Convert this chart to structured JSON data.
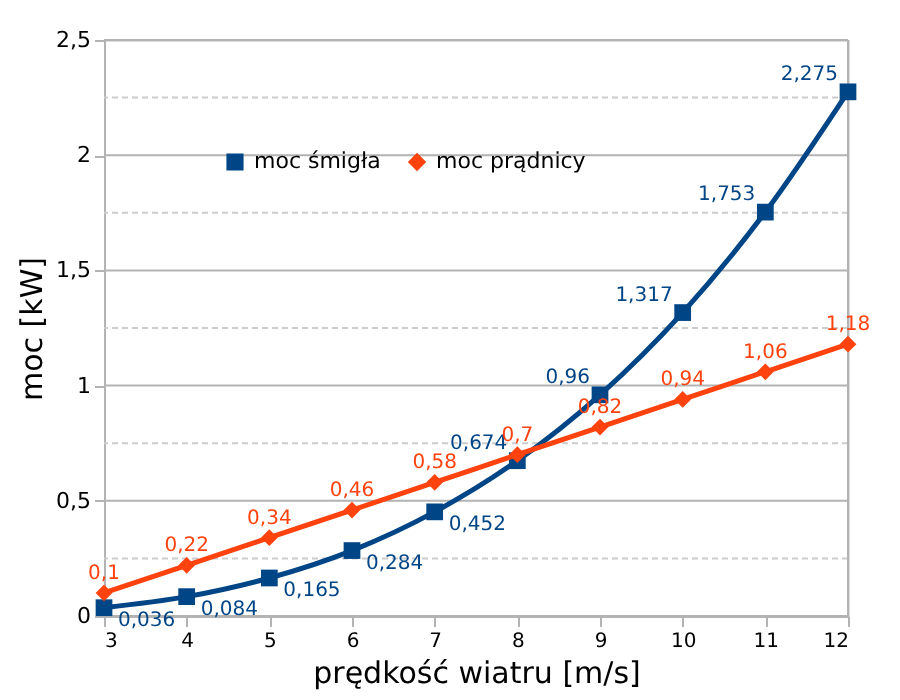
{
  "chart_data": {
    "type": "line",
    "xlabel": "prędkość wiatru [m/s]",
    "ylabel": "moc [kW]",
    "x": [
      3,
      4,
      5,
      6,
      7,
      8,
      9,
      10,
      11,
      12
    ],
    "series": [
      {
        "name": "moc śmigła",
        "color": "#004586",
        "marker": "square",
        "values": [
          0.036,
          0.084,
          0.165,
          0.284,
          0.452,
          0.674,
          0.96,
          1.317,
          1.753,
          2.275
        ],
        "value_labels": [
          "0,036",
          "0,084",
          "0,165",
          "0,284",
          "0,452",
          "0,674",
          "0,96",
          "1,317",
          "1,753",
          "2,275"
        ]
      },
      {
        "name": "moc prądnicy",
        "color": "#ff420e",
        "marker": "diamond",
        "values": [
          0.1,
          0.22,
          0.34,
          0.46,
          0.58,
          0.7,
          0.82,
          0.94,
          1.06,
          1.18
        ],
        "value_labels": [
          "0,1",
          "0,22",
          "0,34",
          "0,46",
          "0,58",
          "0,7",
          "0,82",
          "0,94",
          "1,06",
          "1,18"
        ]
      }
    ],
    "xlim": [
      3,
      12
    ],
    "xticks": [
      3,
      4,
      5,
      6,
      7,
      8,
      9,
      10,
      11,
      12
    ],
    "ylim": [
      0,
      2.5
    ],
    "yticks": [
      0,
      {
        "value": 0.25,
        "label": null
      },
      {
        "value": 0.5,
        "label": "0,5"
      },
      {
        "value": 0.75,
        "label": null
      },
      1,
      {
        "value": 1.25,
        "label": null
      },
      {
        "value": 1.5,
        "label": "1,5"
      },
      {
        "value": 1.75,
        "label": null
      },
      2,
      {
        "value": 2.25,
        "label": null
      },
      {
        "value": 2.5,
        "label": "2,5"
      }
    ],
    "grid": "y",
    "legend": "top left",
    "line_style": "solid"
  }
}
